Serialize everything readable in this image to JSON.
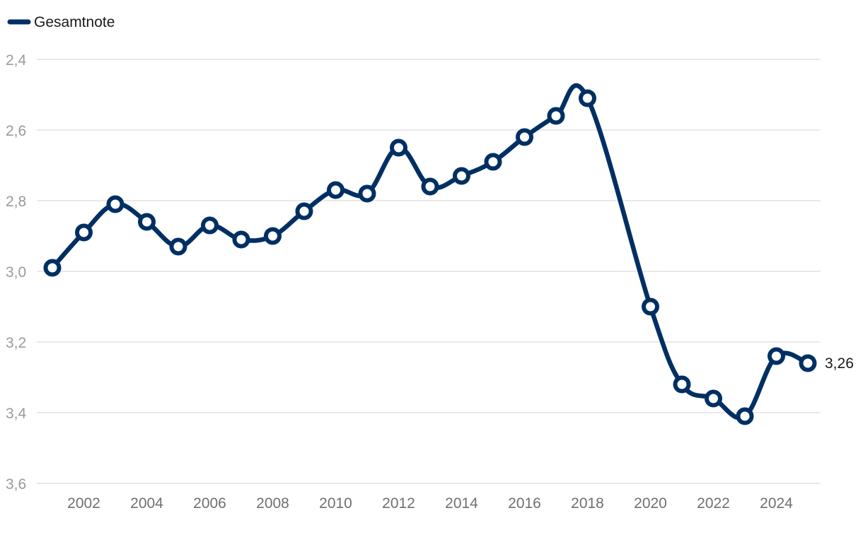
{
  "chart_data": {
    "type": "line",
    "y_inverted": true,
    "ylim": [
      2.4,
      3.6
    ],
    "yticks": [
      "2,4",
      "2,6",
      "2,8",
      "3,0",
      "3,2",
      "3,4",
      "3,6"
    ],
    "ytick_values": [
      2.4,
      2.6,
      2.8,
      3.0,
      3.2,
      3.4,
      3.6
    ],
    "xlim": [
      2001,
      2025
    ],
    "xticks": [
      "2002",
      "2004",
      "2006",
      "2008",
      "2010",
      "2012",
      "2014",
      "2016",
      "2018",
      "2020",
      "2022",
      "2024"
    ],
    "xtick_values": [
      2002,
      2004,
      2006,
      2008,
      2010,
      2012,
      2014,
      2016,
      2018,
      2020,
      2022,
      2024
    ],
    "grid": true,
    "legend_position": "top-left",
    "series": [
      {
        "name": "Gesamtnote",
        "color": "#002f63",
        "x": [
          2001,
          2002,
          2003,
          2004,
          2005,
          2006,
          2007,
          2008,
          2009,
          2010,
          2011,
          2012,
          2013,
          2014,
          2015,
          2016,
          2017,
          2018,
          2020,
          2021,
          2022,
          2023,
          2024,
          2025
        ],
        "values": [
          2.99,
          2.89,
          2.81,
          2.86,
          2.93,
          2.87,
          2.91,
          2.9,
          2.83,
          2.77,
          2.78,
          2.65,
          2.76,
          2.73,
          2.69,
          2.62,
          2.56,
          2.51,
          3.1,
          3.32,
          3.36,
          3.41,
          3.24,
          3.26
        ]
      }
    ],
    "end_label": "3,26"
  }
}
